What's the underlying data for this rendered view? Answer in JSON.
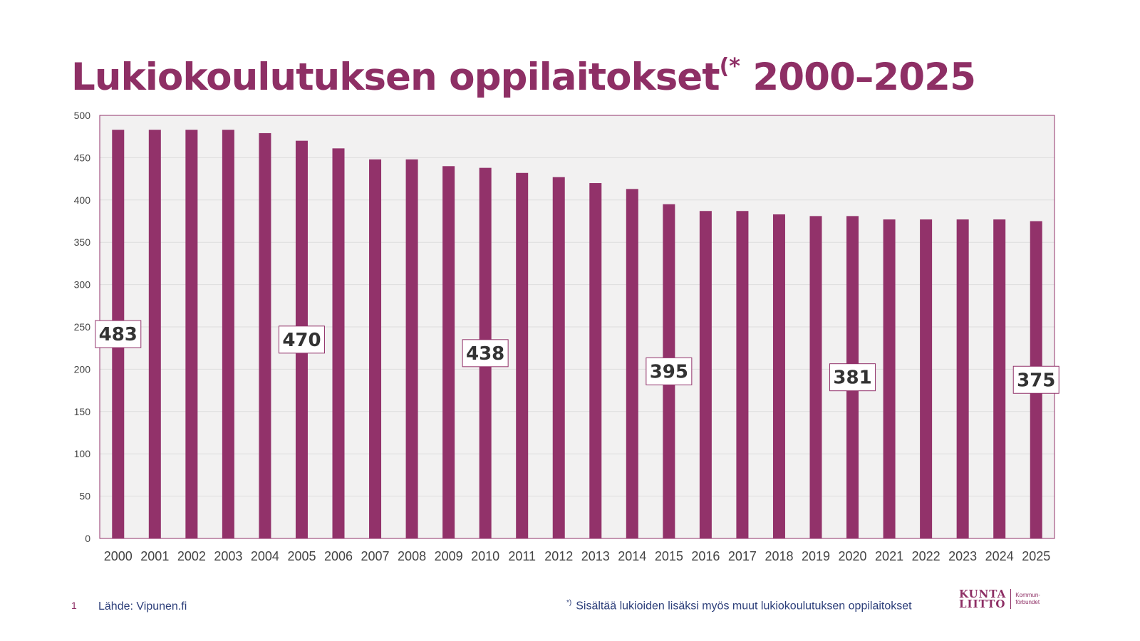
{
  "title": {
    "main": "Lukiokoulutuksen oppilaitokset",
    "marker": "(*",
    "years": "2000–2025"
  },
  "footer": {
    "page_number": "1",
    "source": "Lähde: Vipunen.fi",
    "note_marker": "*)",
    "note": "Sisältää lukioiden lisäksi myös muut lukiokoulutuksen oppilaitokset"
  },
  "logo": {
    "line1": "KUNTA",
    "line2": "LIITTO",
    "sub1": "Kommun-",
    "sub2": "förbundet"
  },
  "colors": {
    "bar": "#92326a",
    "plot_background": "#f2f1f1",
    "plot_border": "#92326a",
    "grid": "#dddddd",
    "title": "#8e2f65",
    "footer_text": "#2d3f7a"
  },
  "chart_data": {
    "type": "bar",
    "categories": [
      "2000",
      "2001",
      "2002",
      "2003",
      "2004",
      "2005",
      "2006",
      "2007",
      "2008",
      "2009",
      "2010",
      "2011",
      "2012",
      "2013",
      "2014",
      "2015",
      "2016",
      "2017",
      "2018",
      "2019",
      "2020",
      "2021",
      "2022",
      "2023",
      "2024",
      "2025"
    ],
    "values": [
      483,
      483,
      483,
      483,
      479,
      470,
      461,
      448,
      448,
      440,
      438,
      432,
      427,
      420,
      413,
      395,
      387,
      387,
      383,
      381,
      381,
      377,
      377,
      377,
      377,
      375
    ],
    "ylim": [
      0,
      500
    ],
    "yticks": [
      0,
      50,
      100,
      150,
      200,
      250,
      300,
      350,
      400,
      450,
      500
    ],
    "grid": true,
    "data_labels": [
      {
        "category": "2000",
        "value": 483,
        "text": "483"
      },
      {
        "category": "2005",
        "value": 470,
        "text": "470"
      },
      {
        "category": "2010",
        "value": 438,
        "text": "438"
      },
      {
        "category": "2015",
        "value": 395,
        "text": "395"
      },
      {
        "category": "2020",
        "value": 381,
        "text": "381"
      },
      {
        "category": "2025",
        "value": 375,
        "text": "375"
      }
    ]
  }
}
